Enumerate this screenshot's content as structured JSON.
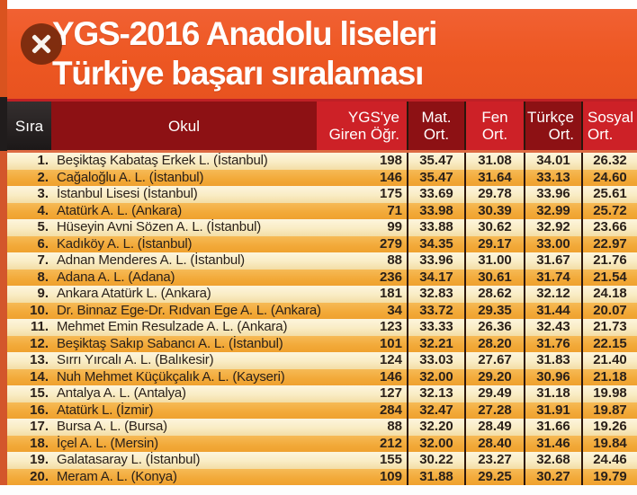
{
  "banner": {
    "title_line1": "YGS-2016 Anadolu liseleri",
    "title_line2": "Türkiye başarı sıralaması",
    "close_icon": "x"
  },
  "colors": {
    "banner_orange": "#ED5722",
    "header_dark_red": "#8D1114",
    "header_bright_red": "#CD2127",
    "header_black": "#201C1C",
    "row_cream": "#F9ECC4",
    "row_gold": "#F2A938"
  },
  "table": {
    "headers": {
      "sira": "Sıra",
      "okul": "Okul",
      "ygs_line1": "YGS'ye",
      "ygs_line2": "Giren Öğr.",
      "mat_line1": "Mat.",
      "mat_line2": "Ort.",
      "fen_line1": "Fen",
      "fen_line2": "Ort.",
      "turkce_line1": "Türkçe",
      "turkce_line2": "Ort.",
      "sosyal_line1": "Sosyal",
      "sosyal_line2": "Ort."
    },
    "rows": [
      {
        "rank": "1.",
        "school": "Beşiktaş Kabataş Erkek L. (İstanbul)",
        "students": "198",
        "mat": "35.47",
        "fen": "31.08",
        "turkce": "34.01",
        "sosyal": "26.32"
      },
      {
        "rank": "2.",
        "school": "Cağaloğlu A. L. (İstanbul)",
        "students": "146",
        "mat": "35.47",
        "fen": "31.64",
        "turkce": "33.13",
        "sosyal": "24.60"
      },
      {
        "rank": "3.",
        "school": "İstanbul Lisesi (İstanbul)",
        "students": "175",
        "mat": "33.69",
        "fen": "29.78",
        "turkce": "33.96",
        "sosyal": "25.61"
      },
      {
        "rank": "4.",
        "school": "Atatürk A. L. (Ankara)",
        "students": "71",
        "mat": "33.98",
        "fen": "30.39",
        "turkce": "32.99",
        "sosyal": "25.72"
      },
      {
        "rank": "5.",
        "school": "Hüseyin Avni Sözen A. L. (İstanbul)",
        "students": "99",
        "mat": "33.88",
        "fen": "30.62",
        "turkce": "32.92",
        "sosyal": "23.66"
      },
      {
        "rank": "6.",
        "school": "Kadıköy A. L. (İstanbul)",
        "students": "279",
        "mat": "34.35",
        "fen": "29.17",
        "turkce": "33.00",
        "sosyal": "22.97"
      },
      {
        "rank": "7.",
        "school": "Adnan Menderes A. L. (İstanbul)",
        "students": "88",
        "mat": "33.96",
        "fen": "31.00",
        "turkce": "31.67",
        "sosyal": "21.76"
      },
      {
        "rank": "8.",
        "school": "Adana A. L. (Adana)",
        "students": "236",
        "mat": "34.17",
        "fen": "30.61",
        "turkce": "31.74",
        "sosyal": "21.54"
      },
      {
        "rank": "9.",
        "school": "Ankara Atatürk L. (Ankara)",
        "students": "181",
        "mat": "32.83",
        "fen": "28.62",
        "turkce": "32.12",
        "sosyal": "24.18"
      },
      {
        "rank": "10.",
        "school": "Dr. Binnaz Ege-Dr. Rıdvan Ege A. L. (Ankara)",
        "students": "34",
        "mat": "33.72",
        "fen": "29.35",
        "turkce": "31.44",
        "sosyal": "20.07"
      },
      {
        "rank": "11.",
        "school": "Mehmet Emin Resulzade A. L. (Ankara)",
        "students": "123",
        "mat": "33.33",
        "fen": "26.36",
        "turkce": "32.43",
        "sosyal": "21.73"
      },
      {
        "rank": "12.",
        "school": "Beşiktaş Sakıp Sabancı A. L. (İstanbul)",
        "students": "101",
        "mat": "32.21",
        "fen": "28.20",
        "turkce": "31.76",
        "sosyal": "22.15"
      },
      {
        "rank": "13.",
        "school": "Sırrı Yırcalı A. L. (Balıkesir)",
        "students": "124",
        "mat": "33.03",
        "fen": "27.67",
        "turkce": "31.83",
        "sosyal": "21.40"
      },
      {
        "rank": "14.",
        "school": "Nuh Mehmet Küçükçalık A. L. (Kayseri)",
        "students": "146",
        "mat": "32.00",
        "fen": "29.20",
        "turkce": "30.96",
        "sosyal": "21.18"
      },
      {
        "rank": "15.",
        "school": "Antalya A. L. (Antalya)",
        "students": "127",
        "mat": "32.13",
        "fen": "29.49",
        "turkce": "31.18",
        "sosyal": "19.98"
      },
      {
        "rank": "16.",
        "school": "Atatürk L. (İzmir)",
        "students": "284",
        "mat": "32.47",
        "fen": "27.28",
        "turkce": "31.91",
        "sosyal": "19.87"
      },
      {
        "rank": "17.",
        "school": "Bursa A. L. (Bursa)",
        "students": "88",
        "mat": "32.20",
        "fen": "28.49",
        "turkce": "31.66",
        "sosyal": "19.26"
      },
      {
        "rank": "18.",
        "school": "İçel A. L. (Mersin)",
        "students": "212",
        "mat": "32.00",
        "fen": "28.40",
        "turkce": "31.46",
        "sosyal": "19.84"
      },
      {
        "rank": "19.",
        "school": "Galatasaray L. (İstanbul)",
        "students": "155",
        "mat": "30.22",
        "fen": "23.27",
        "turkce": "32.68",
        "sosyal": "24.46"
      },
      {
        "rank": "20.",
        "school": "Meram A. L. (Konya)",
        "students": "109",
        "mat": "31.88",
        "fen": "29.25",
        "turkce": "30.27",
        "sosyal": "19.79"
      }
    ]
  }
}
